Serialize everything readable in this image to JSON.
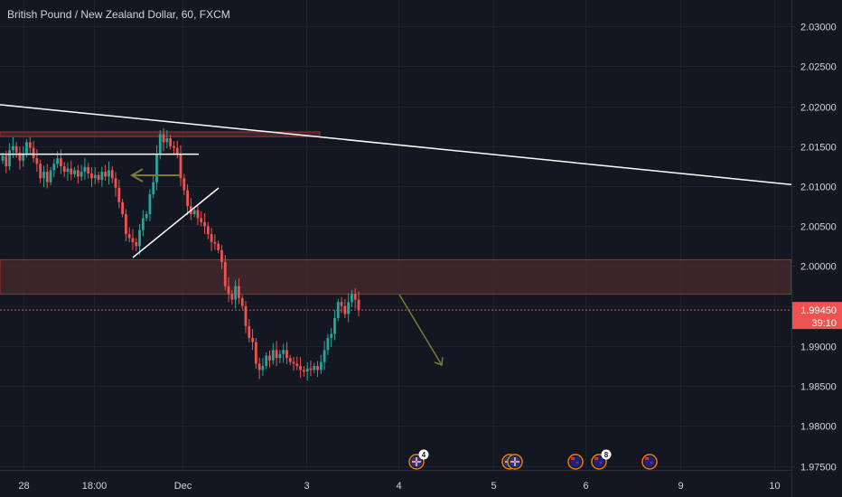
{
  "header": {
    "title": "British Pound / New Zealand Dollar, 60, FXCM"
  },
  "colors": {
    "background": "#131722",
    "grid": "#1e222d",
    "text": "#d1d4dc",
    "up": "#26a69a",
    "down": "#ef5350",
    "drawing_white": "#ffffff",
    "drawing_olive": "#7d7a2c",
    "zone_fill": "#4a2a2e",
    "zone_border": "#b22833",
    "price_tag": "#ef5350"
  },
  "chart_data": {
    "type": "candlestick",
    "symbol": "British Pound / New Zealand Dollar",
    "timeframe": "60",
    "source": "FXCM",
    "ylim": [
      1.9745,
      2.0333
    ],
    "y_ticks": [
      "2.03000",
      "2.02500",
      "2.02000",
      "2.01500",
      "2.01000",
      "2.00500",
      "2.00000",
      "1.99500",
      "1.99000",
      "1.98500",
      "1.98000",
      "1.97500"
    ],
    "x_ticks": [
      "28",
      "18:00",
      "Dec",
      "3",
      "4",
      "5",
      "6",
      "9",
      "10"
    ],
    "current_price": "1.99450",
    "countdown": "39:10",
    "candles_close": [
      2.0138,
      2.0125,
      2.0145,
      2.015,
      2.0142,
      2.0132,
      2.014,
      2.0155,
      2.0148,
      2.0135,
      2.0128,
      2.011,
      2.0118,
      2.0105,
      2.012,
      2.0128,
      2.0135,
      2.0125,
      2.0118,
      2.0122,
      2.0115,
      2.012,
      2.0112,
      2.0118,
      2.0124,
      2.0116,
      2.011,
      2.0114,
      2.0108,
      2.0118,
      2.0112,
      2.012,
      2.011,
      2.0098,
      2.008,
      2.0065,
      2.004,
      2.0035,
      2.003,
      2.0025,
      2.0045,
      2.006,
      2.0065,
      2.009,
      2.0105,
      2.014,
      2.0165,
      2.0155,
      2.016,
      2.015,
      2.0148,
      2.014,
      2.011,
      2.0095,
      2.0075,
      2.0065,
      2.007,
      2.006,
      2.0055,
      2.005,
      2.004,
      2.003,
      2.0028,
      2.002,
      2.0005,
      1.9975,
      1.9965,
      1.9958,
      1.9975,
      1.996,
      1.995,
      1.9925,
      1.991,
      1.9905,
      1.9878,
      1.987,
      1.9875,
      1.9888,
      1.9882,
      1.9895,
      1.9885,
      1.989,
      1.9895,
      1.9885,
      1.988,
      1.9878,
      1.9875,
      1.987,
      1.9868,
      1.9872,
      1.987,
      1.9875,
      1.987,
      1.988,
      1.9895,
      1.991,
      1.9915,
      1.9935,
      1.9955,
      1.995,
      1.994,
      1.9955,
      1.9965,
      1.9958,
      1.9945
    ],
    "resistance_line": {
      "from_price": 2.0202,
      "to_price": 2.0102
    },
    "horizontal_line": 2.014,
    "small_zone": [
      2.0162,
      2.0168
    ],
    "large_zone": [
      1.9965,
      2.0008
    ],
    "events": [
      {
        "flag": "gb",
        "count": "4"
      },
      {
        "flag": "gb",
        "count": ""
      },
      {
        "flag": "gb",
        "count": ""
      },
      {
        "flag": "nz",
        "count": ""
      },
      {
        "flag": "nz",
        "count": "8"
      },
      {
        "flag": "nz",
        "count": ""
      }
    ]
  }
}
